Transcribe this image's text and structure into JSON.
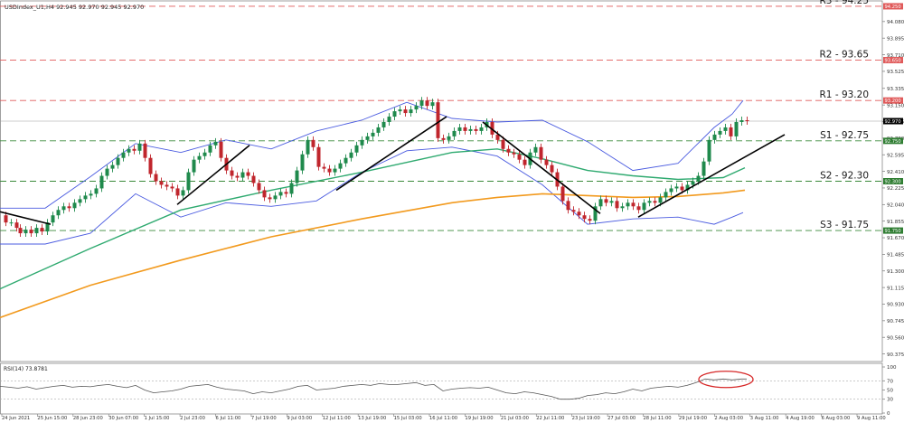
{
  "chart_data": [
    {
      "type": "candlestick",
      "header": "USDIndex_U1,H4  92.945 92.970 92.945 92.970",
      "ylim": [
        90.29,
        94.3
      ],
      "y_ticks": [
        "94.080",
        "93.895",
        "93.710",
        "93.525",
        "93.335",
        "93.150",
        "92.965",
        "92.780",
        "92.595",
        "92.410",
        "92.225",
        "92.040",
        "91.855",
        "91.670",
        "91.485",
        "91.300",
        "91.115",
        "90.930",
        "90.745",
        "90.560",
        "90.375"
      ],
      "x_ticks": [
        "24 Jun 2021",
        "25 Jun 15:00",
        "28 Jun 23:00",
        "30 Jun 07:00",
        "1 Jul 15:00",
        "2 Jul 23:00",
        "6 Jul 11:00",
        "7 Jul 19:00",
        "9 Jul 03:00",
        "12 Jul 11:00",
        "13 Jul 19:00",
        "15 Jul 03:00",
        "16 Jul 11:00",
        "19 Jul 19:00",
        "21 Jul 03:00",
        "22 Jul 11:00",
        "23 Jul 19:00",
        "27 Jul 03:00",
        "28 Jul 11:00",
        "29 Jul 19:00",
        "2 Aug 03:00",
        "3 Aug 11:00",
        "4 Aug 19:00",
        "6 Aug 03:00",
        "9 Aug 11:00"
      ],
      "levels": [
        {
          "name": "R3 - 94.25",
          "value": 94.25,
          "tag": "94.250"
        },
        {
          "name": "R2 - 93.65",
          "value": 93.65,
          "tag": "93.650"
        },
        {
          "name": "R1 - 93.20",
          "value": 93.2,
          "tag": "93.200"
        },
        {
          "name": "S1 - 92.75",
          "value": 92.75,
          "tag": "92.750"
        },
        {
          "name": "S2 - 92.30",
          "value": 92.3,
          "tag": "92.300"
        },
        {
          "name": "S3 - 91.75",
          "value": 91.75,
          "tag": "91.750"
        }
      ],
      "current_price": {
        "value": 92.97,
        "tag": "92.970"
      },
      "close_path": [
        [
          0,
          91.92
        ],
        [
          6,
          91.84
        ],
        [
          12,
          91.84
        ],
        [
          18,
          91.78
        ],
        [
          22,
          91.72
        ],
        [
          28,
          91.76
        ],
        [
          34,
          91.72
        ],
        [
          40,
          91.78
        ],
        [
          46,
          91.74
        ],
        [
          52,
          91.84
        ],
        [
          58,
          91.92
        ],
        [
          64,
          91.98
        ],
        [
          70,
          92.02
        ],
        [
          76,
          92.0
        ],
        [
          82,
          92.06
        ],
        [
          88,
          92.1
        ],
        [
          94,
          92.14
        ],
        [
          100,
          92.16
        ],
        [
          106,
          92.22
        ],
        [
          112,
          92.36
        ],
        [
          118,
          92.44
        ],
        [
          124,
          92.48
        ],
        [
          130,
          92.56
        ],
        [
          136,
          92.62
        ],
        [
          142,
          92.66
        ],
        [
          148,
          92.64
        ],
        [
          154,
          92.72
        ],
        [
          160,
          92.56
        ],
        [
          166,
          92.38
        ],
        [
          172,
          92.3
        ],
        [
          178,
          92.26
        ],
        [
          184,
          92.24
        ],
        [
          190,
          92.22
        ],
        [
          196,
          92.14
        ],
        [
          202,
          92.2
        ],
        [
          208,
          92.4
        ],
        [
          214,
          92.54
        ],
        [
          220,
          92.58
        ],
        [
          226,
          92.62
        ],
        [
          232,
          92.7
        ],
        [
          238,
          92.74
        ],
        [
          244,
          92.56
        ],
        [
          250,
          92.42
        ],
        [
          256,
          92.36
        ],
        [
          262,
          92.34
        ],
        [
          268,
          92.4
        ],
        [
          274,
          92.36
        ],
        [
          280,
          92.28
        ],
        [
          286,
          92.2
        ],
        [
          292,
          92.12
        ],
        [
          298,
          92.1
        ],
        [
          304,
          92.14
        ],
        [
          310,
          92.18
        ],
        [
          316,
          92.16
        ],
        [
          322,
          92.28
        ],
        [
          328,
          92.42
        ],
        [
          334,
          92.6
        ],
        [
          340,
          92.76
        ],
        [
          346,
          92.68
        ],
        [
          352,
          92.46
        ],
        [
          358,
          92.44
        ],
        [
          364,
          92.4
        ],
        [
          370,
          92.44
        ],
        [
          376,
          92.5
        ],
        [
          382,
          92.56
        ],
        [
          388,
          92.62
        ],
        [
          394,
          92.7
        ],
        [
          400,
          92.76
        ],
        [
          406,
          92.8
        ],
        [
          412,
          92.84
        ],
        [
          418,
          92.9
        ],
        [
          424,
          92.96
        ],
        [
          430,
          93.02
        ],
        [
          436,
          93.08
        ],
        [
          442,
          93.1
        ],
        [
          448,
          93.06
        ],
        [
          454,
          93.1
        ],
        [
          460,
          93.14
        ],
        [
          466,
          93.2
        ],
        [
          472,
          93.14
        ],
        [
          478,
          93.18
        ],
        [
          484,
          92.78
        ],
        [
          490,
          92.76
        ],
        [
          496,
          92.8
        ],
        [
          502,
          92.86
        ],
        [
          508,
          92.9
        ],
        [
          514,
          92.86
        ],
        [
          520,
          92.88
        ],
        [
          526,
          92.86
        ],
        [
          532,
          92.9
        ],
        [
          538,
          92.96
        ],
        [
          544,
          92.82
        ],
        [
          550,
          92.76
        ],
        [
          556,
          92.66
        ],
        [
          562,
          92.62
        ],
        [
          568,
          92.6
        ],
        [
          574,
          92.54
        ],
        [
          580,
          92.48
        ],
        [
          586,
          92.62
        ],
        [
          592,
          92.68
        ],
        [
          598,
          92.54
        ],
        [
          604,
          92.48
        ],
        [
          610,
          92.4
        ],
        [
          616,
          92.24
        ],
        [
          622,
          92.08
        ],
        [
          628,
          91.98
        ],
        [
          634,
          91.96
        ],
        [
          640,
          91.92
        ],
        [
          646,
          91.88
        ],
        [
          652,
          91.86
        ],
        [
          658,
          92.02
        ],
        [
          664,
          92.1
        ],
        [
          670,
          92.06
        ],
        [
          676,
          92.08
        ],
        [
          682,
          92.0
        ],
        [
          688,
          92.02
        ],
        [
          694,
          92.06
        ],
        [
          700,
          92.02
        ],
        [
          706,
          91.98
        ],
        [
          712,
          92.06
        ],
        [
          718,
          92.08
        ],
        [
          724,
          92.06
        ],
        [
          730,
          92.12
        ],
        [
          736,
          92.18
        ],
        [
          742,
          92.22
        ],
        [
          748,
          92.24
        ],
        [
          754,
          92.2
        ],
        [
          760,
          92.26
        ],
        [
          766,
          92.3
        ],
        [
          772,
          92.36
        ],
        [
          778,
          92.52
        ],
        [
          784,
          92.76
        ],
        [
          790,
          92.82
        ],
        [
          796,
          92.86
        ],
        [
          802,
          92.9
        ],
        [
          808,
          92.8
        ],
        [
          814,
          92.96
        ],
        [
          820,
          92.98
        ],
        [
          826,
          92.97
        ]
      ],
      "ma_green": [
        [
          0,
          91.1
        ],
        [
          100,
          91.55
        ],
        [
          200,
          91.98
        ],
        [
          300,
          92.2
        ],
        [
          400,
          92.4
        ],
        [
          500,
          92.62
        ],
        [
          550,
          92.66
        ],
        [
          600,
          92.55
        ],
        [
          650,
          92.42
        ],
        [
          700,
          92.36
        ],
        [
          750,
          92.32
        ],
        [
          800,
          92.34
        ],
        [
          824,
          92.45
        ]
      ],
      "ma_orange": [
        [
          0,
          90.78
        ],
        [
          100,
          91.14
        ],
        [
          200,
          91.42
        ],
        [
          300,
          91.68
        ],
        [
          400,
          91.88
        ],
        [
          500,
          92.06
        ],
        [
          550,
          92.12
        ],
        [
          600,
          92.16
        ],
        [
          650,
          92.14
        ],
        [
          700,
          92.12
        ],
        [
          750,
          92.13
        ],
        [
          800,
          92.17
        ],
        [
          824,
          92.2
        ]
      ],
      "bb_upper": [
        [
          0,
          92.0
        ],
        [
          50,
          92.0
        ],
        [
          100,
          92.35
        ],
        [
          150,
          92.72
        ],
        [
          200,
          92.62
        ],
        [
          250,
          92.76
        ],
        [
          300,
          92.66
        ],
        [
          350,
          92.86
        ],
        [
          400,
          92.98
        ],
        [
          450,
          93.18
        ],
        [
          500,
          93.0
        ],
        [
          550,
          92.96
        ],
        [
          600,
          92.98
        ],
        [
          650,
          92.74
        ],
        [
          700,
          92.42
        ],
        [
          750,
          92.5
        ],
        [
          790,
          92.9
        ],
        [
          810,
          93.05
        ],
        [
          822,
          93.2
        ]
      ],
      "bb_lower": [
        [
          0,
          91.6
        ],
        [
          50,
          91.6
        ],
        [
          100,
          91.72
        ],
        [
          150,
          92.16
        ],
        [
          200,
          91.9
        ],
        [
          250,
          92.06
        ],
        [
          300,
          92.02
        ],
        [
          350,
          92.08
        ],
        [
          400,
          92.4
        ],
        [
          450,
          92.64
        ],
        [
          500,
          92.68
        ],
        [
          550,
          92.58
        ],
        [
          600,
          92.26
        ],
        [
          650,
          91.82
        ],
        [
          700,
          91.88
        ],
        [
          750,
          91.9
        ],
        [
          790,
          91.82
        ],
        [
          810,
          91.9
        ],
        [
          822,
          91.95
        ]
      ],
      "trendlines": [
        [
          [
            0,
            91.96
          ],
          [
            56,
            91.82
          ]
        ],
        [
          [
            196,
            92.04
          ],
          [
            276,
            92.7
          ]
        ],
        [
          [
            372,
            92.2
          ],
          [
            494,
            93.02
          ]
        ],
        [
          [
            534,
            92.96
          ],
          [
            664,
            91.94
          ]
        ],
        [
          [
            706,
            91.9
          ],
          [
            868,
            92.82
          ]
        ]
      ]
    },
    {
      "type": "line",
      "title": "RSI(14) 73.8781",
      "ylim": [
        0,
        100
      ],
      "y_ticks": [
        "100",
        "70",
        "50",
        "30",
        "0"
      ],
      "values": [
        [
          0,
          58
        ],
        [
          10,
          56
        ],
        [
          20,
          54
        ],
        [
          30,
          57
        ],
        [
          40,
          52
        ],
        [
          50,
          55
        ],
        [
          60,
          58
        ],
        [
          70,
          60
        ],
        [
          80,
          56
        ],
        [
          90,
          58
        ],
        [
          100,
          57
        ],
        [
          110,
          60
        ],
        [
          120,
          62
        ],
        [
          130,
          58
        ],
        [
          140,
          55
        ],
        [
          150,
          60
        ],
        [
          160,
          50
        ],
        [
          170,
          44
        ],
        [
          180,
          46
        ],
        [
          190,
          48
        ],
        [
          200,
          52
        ],
        [
          210,
          58
        ],
        [
          220,
          60
        ],
        [
          230,
          62
        ],
        [
          240,
          56
        ],
        [
          250,
          52
        ],
        [
          260,
          50
        ],
        [
          270,
          48
        ],
        [
          280,
          42
        ],
        [
          290,
          46
        ],
        [
          300,
          44
        ],
        [
          310,
          48
        ],
        [
          320,
          52
        ],
        [
          330,
          58
        ],
        [
          340,
          60
        ],
        [
          350,
          50
        ],
        [
          360,
          52
        ],
        [
          370,
          54
        ],
        [
          380,
          58
        ],
        [
          390,
          60
        ],
        [
          400,
          62
        ],
        [
          410,
          60
        ],
        [
          420,
          64
        ],
        [
          430,
          62
        ],
        [
          440,
          62
        ],
        [
          450,
          64
        ],
        [
          460,
          66
        ],
        [
          470,
          60
        ],
        [
          480,
          62
        ],
        [
          490,
          48
        ],
        [
          500,
          52
        ],
        [
          510,
          54
        ],
        [
          520,
          55
        ],
        [
          530,
          54
        ],
        [
          540,
          56
        ],
        [
          550,
          50
        ],
        [
          560,
          44
        ],
        [
          570,
          42
        ],
        [
          580,
          46
        ],
        [
          590,
          44
        ],
        [
          600,
          40
        ],
        [
          610,
          36
        ],
        [
          620,
          30
        ],
        [
          630,
          30
        ],
        [
          640,
          32
        ],
        [
          650,
          38
        ],
        [
          660,
          40
        ],
        [
          670,
          44
        ],
        [
          680,
          42
        ],
        [
          690,
          46
        ],
        [
          700,
          52
        ],
        [
          710,
          48
        ],
        [
          720,
          54
        ],
        [
          730,
          56
        ],
        [
          740,
          58
        ],
        [
          750,
          56
        ],
        [
          760,
          60
        ],
        [
          770,
          66
        ],
        [
          780,
          74
        ],
        [
          790,
          72
        ],
        [
          800,
          74
        ],
        [
          810,
          72
        ],
        [
          820,
          74
        ],
        [
          826,
          74
        ]
      ]
    }
  ]
}
